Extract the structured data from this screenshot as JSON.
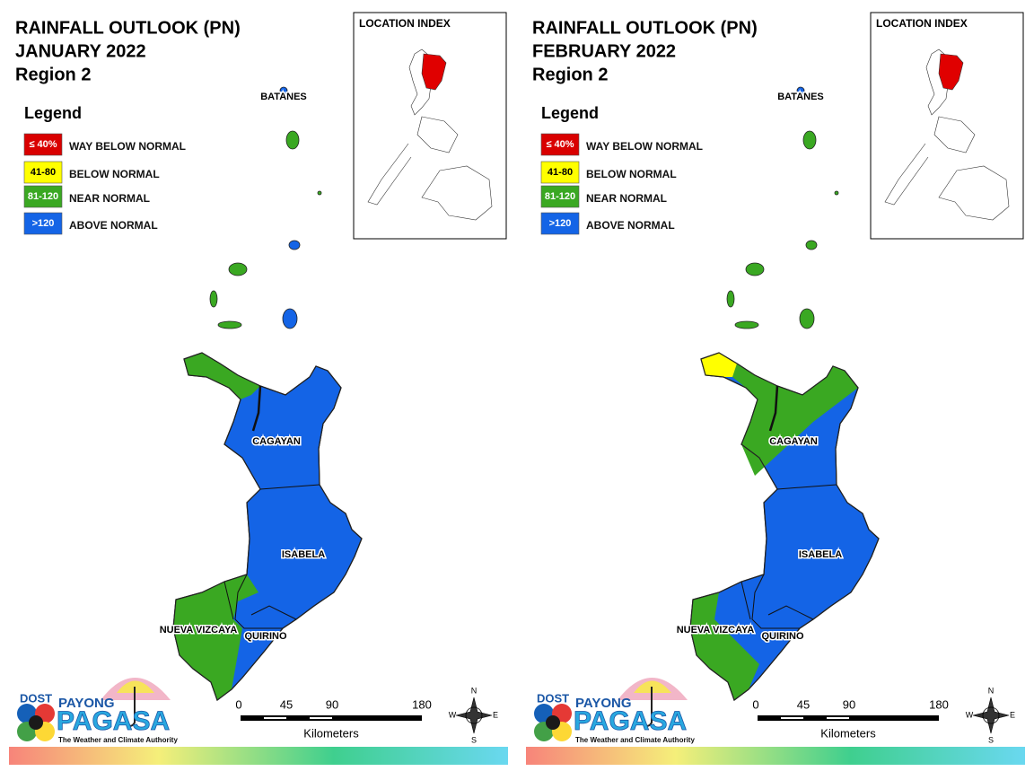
{
  "panels": [
    {
      "title": [
        "RAINFALL OUTLOOK (PN)",
        "JANUARY 2022",
        "Region 2"
      ],
      "legend": {
        "title": "Legend",
        "items": [
          {
            "swatch": "≤ 40%",
            "label": "WAY BELOW NORMAL",
            "color": "#d90000"
          },
          {
            "swatch": "41-80",
            "label": "BELOW NORMAL",
            "color": "#ffff00"
          },
          {
            "swatch": "81-120",
            "label": "NEAR NORMAL",
            "color": "#3aa822"
          },
          {
            "swatch": ">120",
            "label": "ABOVE NORMAL",
            "color": "#1464e6"
          }
        ]
      },
      "location_index": "LOCATION INDEX",
      "provinces": [
        "BATANES",
        "CAGAYAN",
        "ISABELA",
        "NUEVA VIZCAYA",
        "QUIRINO"
      ],
      "scale": {
        "ticks": [
          0,
          45,
          90,
          180
        ],
        "unit": "Kilometers"
      },
      "compass": [
        "N",
        "E",
        "S",
        "W"
      ],
      "logo": {
        "agency": "DOST",
        "brand_top": "PAYONG",
        "brand": "PAGASA",
        "tagline": "The Weather and Climate Authority"
      }
    },
    {
      "title": [
        "RAINFALL OUTLOOK (PN)",
        "FEBRUARY 2022",
        "Region 2"
      ],
      "legend": {
        "title": "Legend",
        "items": [
          {
            "swatch": "≤ 40%",
            "label": "WAY BELOW NORMAL",
            "color": "#d90000"
          },
          {
            "swatch": "41-80",
            "label": "BELOW NORMAL",
            "color": "#ffff00"
          },
          {
            "swatch": "81-120",
            "label": "NEAR NORMAL",
            "color": "#3aa822"
          },
          {
            "swatch": ">120",
            "label": "ABOVE NORMAL",
            "color": "#1464e6"
          }
        ]
      },
      "location_index": "LOCATION INDEX",
      "provinces": [
        "BATANES",
        "CAGAYAN",
        "ISABELA",
        "NUEVA VIZCAYA",
        "QUIRINO"
      ],
      "scale": {
        "ticks": [
          0,
          45,
          90,
          180
        ],
        "unit": "Kilometers"
      },
      "compass": [
        "N",
        "E",
        "S",
        "W"
      ],
      "logo": {
        "agency": "DOST",
        "brand_top": "PAYONG",
        "brand": "PAGASA",
        "tagline": "The Weather and Climate Authority"
      }
    }
  ]
}
